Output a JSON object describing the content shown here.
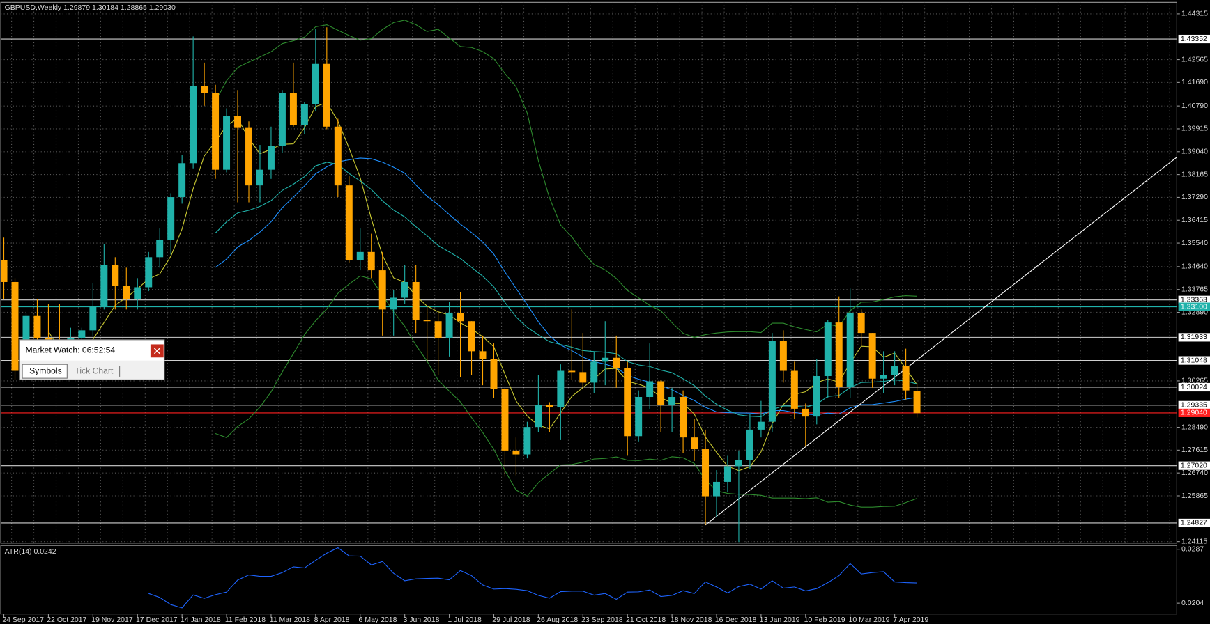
{
  "chart_data": {
    "type": "candlestick",
    "symbol": "GBPUSD,Weekly",
    "quote": [
      "1.29879",
      "1.30184",
      "1.28865",
      "1.29030"
    ],
    "categories": [
      "24 Sep 2017",
      null,
      null,
      null,
      "22 Oct 2017",
      null,
      null,
      null,
      "19 Nov 2017",
      null,
      null,
      null,
      "17 Dec 2017",
      null,
      null,
      null,
      "14 Jan 2018",
      null,
      null,
      null,
      "11 Feb 2018",
      null,
      null,
      null,
      "11 Mar 2018",
      null,
      null,
      null,
      "8 Apr 2018",
      null,
      null,
      null,
      "6 May 2018",
      null,
      null,
      null,
      "3 Jun 2018",
      null,
      null,
      null,
      "1 Jul 2018",
      null,
      null,
      null,
      "29 Jul 2018",
      null,
      null,
      null,
      "26 Aug 2018",
      null,
      null,
      null,
      "23 Sep 2018",
      null,
      null,
      null,
      "21 Oct 2018",
      null,
      null,
      null,
      "18 Nov 2018",
      null,
      null,
      null,
      "16 Dec 2018",
      null,
      null,
      null,
      "13 Jan 2019",
      null,
      null,
      null,
      "10 Feb 2019",
      null,
      null,
      null,
      "10 Mar 2019",
      null,
      null,
      null,
      "7 Apr 2019",
      null,
      null
    ],
    "open": [
      1.349,
      1.3405,
      1.3065,
      1.3275,
      1.319,
      1.3145,
      1.306,
      1.319,
      1.322,
      1.331,
      1.347,
      1.339,
      1.334,
      1.3385,
      1.35,
      1.3565,
      1.373,
      1.386,
      1.4155,
      1.413,
      1.3835,
      1.404,
      1.3995,
      1.3775,
      1.3835,
      1.3925,
      1.413,
      1.4005,
      1.4085,
      1.424,
      1.4,
      1.3775,
      1.349,
      1.352,
      1.345,
      1.33,
      1.3345,
      1.3405,
      1.326,
      1.3255,
      1.319,
      1.3285,
      1.3255,
      1.314,
      1.311,
      1.2995,
      1.276,
      1.2745,
      1.285,
      1.2935,
      1.2925,
      1.3065,
      1.306,
      1.302,
      1.31,
      1.3115,
      1.3075,
      1.2815,
      1.2965,
      1.3025,
      1.2935,
      1.2965,
      1.281,
      1.2765,
      1.2585,
      1.264,
      1.27,
      1.2725,
      1.284,
      1.287,
      1.318,
      1.3065,
      1.292,
      1.289,
      1.3045,
      1.325,
      1.3005,
      1.3285,
      1.321,
      1.3035,
      1.305,
      1.3085,
      1.29879
    ],
    "high": [
      1.3575,
      1.342,
      1.3285,
      1.334,
      1.332,
      1.332,
      1.323,
      1.323,
      1.34,
      1.355,
      1.35,
      1.346,
      1.342,
      1.352,
      1.361,
      1.3745,
      1.389,
      1.4345,
      1.4245,
      1.416,
      1.407,
      1.414,
      1.402,
      1.393,
      1.4,
      1.414,
      1.4245,
      1.4095,
      1.4375,
      1.438,
      1.403,
      1.381,
      1.361,
      1.359,
      1.352,
      1.3375,
      1.347,
      1.347,
      1.331,
      1.3295,
      1.333,
      1.3365,
      1.3255,
      1.32,
      1.317,
      1.3,
      1.281,
      1.287,
      1.305,
      1.2945,
      1.309,
      1.33,
      1.321,
      1.314,
      1.3255,
      1.32,
      1.31,
      1.299,
      1.317,
      1.303,
      1.3,
      1.299,
      1.288,
      1.284,
      1.2685,
      1.274,
      1.276,
      1.29,
      1.295,
      1.321,
      1.322,
      1.31,
      1.294,
      1.311,
      1.326,
      1.335,
      1.338,
      1.33,
      1.321,
      1.314,
      1.314,
      1.315,
      1.30184
    ],
    "low": [
      1.334,
      1.303,
      1.303,
      1.3115,
      1.308,
      1.304,
      1.304,
      1.306,
      1.32,
      1.33,
      1.33,
      1.33,
      1.33,
      1.337,
      1.346,
      1.351,
      1.3705,
      1.384,
      1.408,
      1.38,
      1.3825,
      1.371,
      1.371,
      1.371,
      1.38,
      1.39,
      1.4,
      1.397,
      1.406,
      1.399,
      1.373,
      1.348,
      1.345,
      1.342,
      1.32,
      1.32,
      1.332,
      1.321,
      1.31,
      1.305,
      1.312,
      1.304,
      1.305,
      1.301,
      1.296,
      1.266,
      1.2665,
      1.273,
      1.283,
      1.283,
      1.28,
      1.303,
      1.3,
      1.298,
      1.301,
      1.3,
      1.274,
      1.2795,
      1.292,
      1.283,
      1.283,
      1.275,
      1.272,
      1.2475,
      1.2505,
      1.26,
      1.241,
      1.269,
      1.281,
      1.283,
      1.302,
      1.288,
      1.2775,
      1.286,
      1.296,
      1.296,
      1.296,
      1.316,
      1.3,
      1.298,
      1.301,
      1.2955,
      1.28865
    ],
    "close": [
      1.3405,
      1.3065,
      1.3275,
      1.319,
      1.3145,
      1.306,
      1.319,
      1.322,
      1.331,
      1.347,
      1.339,
      1.334,
      1.3385,
      1.35,
      1.3565,
      1.373,
      1.386,
      1.4155,
      1.413,
      1.3835,
      1.404,
      1.3995,
      1.3775,
      1.3835,
      1.3925,
      1.413,
      1.4005,
      1.4085,
      1.424,
      1.4,
      1.3775,
      1.349,
      1.352,
      1.345,
      1.33,
      1.3345,
      1.3405,
      1.326,
      1.3255,
      1.319,
      1.3285,
      1.3255,
      1.314,
      1.311,
      1.2995,
      1.276,
      1.2745,
      1.285,
      1.2935,
      1.2925,
      1.3065,
      1.306,
      1.302,
      1.31,
      1.3115,
      1.3075,
      1.2815,
      1.2965,
      1.3025,
      1.2935,
      1.2965,
      1.281,
      1.2765,
      1.2585,
      1.264,
      1.27,
      1.2725,
      1.284,
      1.287,
      1.318,
      1.3065,
      1.292,
      1.289,
      1.3045,
      1.325,
      1.3005,
      1.3285,
      1.321,
      1.3035,
      1.305,
      1.3085,
      1.299,
      1.2903
    ],
    "bull_color": "#20b2aa",
    "bear_color": "#ffa500",
    "ylim": [
      1.24115,
      1.44315
    ],
    "yticks": [
      {
        "value": 1.44315,
        "label": "1.44315"
      },
      {
        "value": 1.42565,
        "label": "1.42565"
      },
      {
        "value": 1.4169,
        "label": "1.41690"
      },
      {
        "value": 1.4079,
        "label": "1.40790"
      },
      {
        "value": 1.39915,
        "label": "1.39915"
      },
      {
        "value": 1.3904,
        "label": "1.39040"
      },
      {
        "value": 1.38165,
        "label": "1.38165"
      },
      {
        "value": 1.3729,
        "label": "1.37290"
      },
      {
        "value": 1.36415,
        "label": "1.36415"
      },
      {
        "value": 1.3554,
        "label": "1.35540"
      },
      {
        "value": 1.3464,
        "label": "1.34640"
      },
      {
        "value": 1.33765,
        "label": "1.33765"
      },
      {
        "value": 1.3289,
        "label": "1.32890"
      },
      {
        "value": 1.30265,
        "label": "1.30265"
      },
      {
        "value": 1.2849,
        "label": "1.28490"
      },
      {
        "value": 1.27615,
        "label": "1.27615"
      },
      {
        "value": 1.2674,
        "label": "1.26740"
      },
      {
        "value": 1.25865,
        "label": "1.25865"
      },
      {
        "value": 1.24115,
        "label": "1.24115"
      }
    ],
    "grid": true,
    "levels": [
      {
        "value": 1.43352,
        "label": "1.43352",
        "color": "#d0d0d0",
        "label_bg": "#ffffff"
      },
      {
        "value": 1.33363,
        "label": "1.33363",
        "color": "#d0d0d0",
        "label_bg": "#ffffff"
      },
      {
        "value": 1.331,
        "label": "1.33100",
        "color": "#20b2aa",
        "label_bg": "#20b2aa"
      },
      {
        "value": 1.31933,
        "label": "1.31933",
        "color": "#d0d0d0",
        "label_bg": "#ffffff"
      },
      {
        "value": 1.31048,
        "label": "1.31048",
        "color": "#d0d0d0",
        "label_bg": "#ffffff"
      },
      {
        "value": 1.30024,
        "label": "1.30024",
        "color": "#d0d0d0",
        "label_bg": "#ffffff"
      },
      {
        "value": 1.29335,
        "label": "1.29335",
        "color": "#d0d0d0",
        "label_bg": "#ffffff"
      },
      {
        "value": 1.2904,
        "label": "1.29040",
        "color": "#ff2020",
        "label_bg": "#ff2020"
      },
      {
        "value": 1.2702,
        "label": "1.27020",
        "color": "#d0d0d0",
        "label_bg": "#ffffff"
      },
      {
        "value": 1.24827,
        "label": "1.24827",
        "color": "#d0d0d0",
        "label_bg": "#ffffff"
      }
    ],
    "trendline": {
      "x": [
        63,
        105.7
      ],
      "y": [
        1.2475,
        1.3895
      ],
      "color": "#ffffff"
    },
    "indicators": [
      {
        "kind": "sma",
        "period": 5,
        "color": "#c8c832"
      },
      {
        "kind": "sma",
        "period": 20,
        "color": "#1e90ff"
      },
      {
        "kind": "ema",
        "period": 20,
        "color": "#20b2aa"
      },
      {
        "kind": "bands",
        "period": 20,
        "deviation": 2,
        "color": "#2e8b2e"
      }
    ],
    "atr": {
      "label": "ATR(14) 0.0242",
      "period": 14,
      "color": "#1e64ff",
      "ylim": [
        0.0204,
        0.0287
      ],
      "yticks": [
        0.0287,
        0.0204
      ]
    },
    "market_watch": {
      "title": "Market Watch: 06:52:54",
      "tabs": [
        "Symbols",
        "Tick Chart"
      ]
    }
  }
}
